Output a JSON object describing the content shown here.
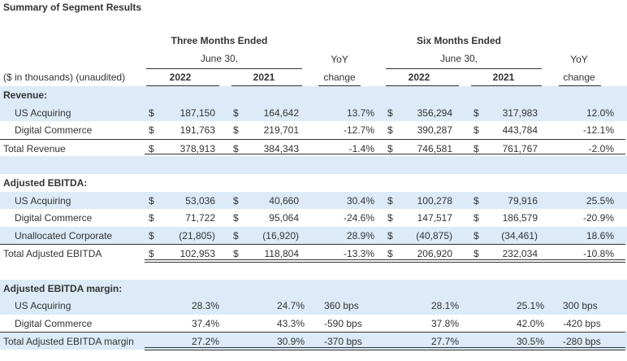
{
  "title": "Summary of Segment Results",
  "header": {
    "three_months": "Three Months Ended",
    "three_date": "June 30,",
    "six_months": "Six Months Ended",
    "six_date": "June 30,",
    "yoy": "YoY",
    "change": "change",
    "units": "($ in thousands) (unaudited)",
    "year_a": "2022",
    "year_b": "2021"
  },
  "currency": "$",
  "sections": [
    {
      "label": "Revenue:",
      "rows": [
        {
          "label": "US Acquiring",
          "dollar": true,
          "q2022": "187,150",
          "q2021": "164,642",
          "q_yoy": "13.7%",
          "s2022": "356,294",
          "s2021": "317,983",
          "s_yoy": "12.0%"
        },
        {
          "label": "Digital Commerce",
          "dollar": true,
          "q2022": "191,763",
          "q2021": "219,701",
          "q_yoy": "-12.7%",
          "s2022": "390,287",
          "s2021": "443,784",
          "s_yoy": "-12.1%"
        },
        {
          "label": "Total Revenue",
          "dollar": true,
          "total": true,
          "q2022": "378,913",
          "q2021": "384,343",
          "q_yoy": "-1.4%",
          "s2022": "746,581",
          "s2021": "761,767",
          "s_yoy": "-2.0%"
        }
      ]
    },
    {
      "label": "Adjusted EBITDA:",
      "rows": [
        {
          "label": "US Acquiring",
          "dollar": true,
          "q2022": "53,036",
          "q2021": "40,660",
          "q_yoy": "30.4%",
          "s2022": "100,278",
          "s2021": "79,916",
          "s_yoy": "25.5%"
        },
        {
          "label": "Digital Commerce",
          "dollar": true,
          "q2022": "71,722",
          "q2021": "95,064",
          "q_yoy": "-24.6%",
          "s2022": "147,517",
          "s2021": "186,579",
          "s_yoy": "-20.9%"
        },
        {
          "label": "Unallocated Corporate",
          "dollar": true,
          "q2022": "(21,805)",
          "q2021": "(16,920)",
          "q_yoy": "28.9%",
          "s2022": "(40,875)",
          "s2021": "(34,461)",
          "s_yoy": "18.6%"
        },
        {
          "label": "Total Adjusted EBITDA",
          "dollar": true,
          "total": true,
          "q2022": "102,953",
          "q2021": "118,804",
          "q_yoy": "-13.3%",
          "s2022": "206,920",
          "s2021": "232,034",
          "s_yoy": "-10.8%"
        }
      ]
    },
    {
      "label": "Adjusted EBITDA margin:",
      "rows": [
        {
          "label": "US Acquiring",
          "dollar": false,
          "q2022": "28.3%",
          "q2021": "24.7%",
          "q_yoy": "360 bps",
          "s2022": "28.1%",
          "s2021": "25.1%",
          "s_yoy": "300 bps"
        },
        {
          "label": "Digital Commerce",
          "dollar": false,
          "q2022": "37.4%",
          "q2021": "43.3%",
          "q_yoy": "-590 bps",
          "s2022": "37.8%",
          "s2021": "42.0%",
          "s_yoy": "-420 bps"
        },
        {
          "label": "Total Adjusted EBITDA margin",
          "dollar": false,
          "total": true,
          "q2022": "27.2%",
          "q2021": "30.9%",
          "q_yoy": "-370 bps",
          "s2022": "27.7%",
          "s2021": "30.5%",
          "s_yoy": "-280 bps"
        }
      ]
    }
  ]
}
